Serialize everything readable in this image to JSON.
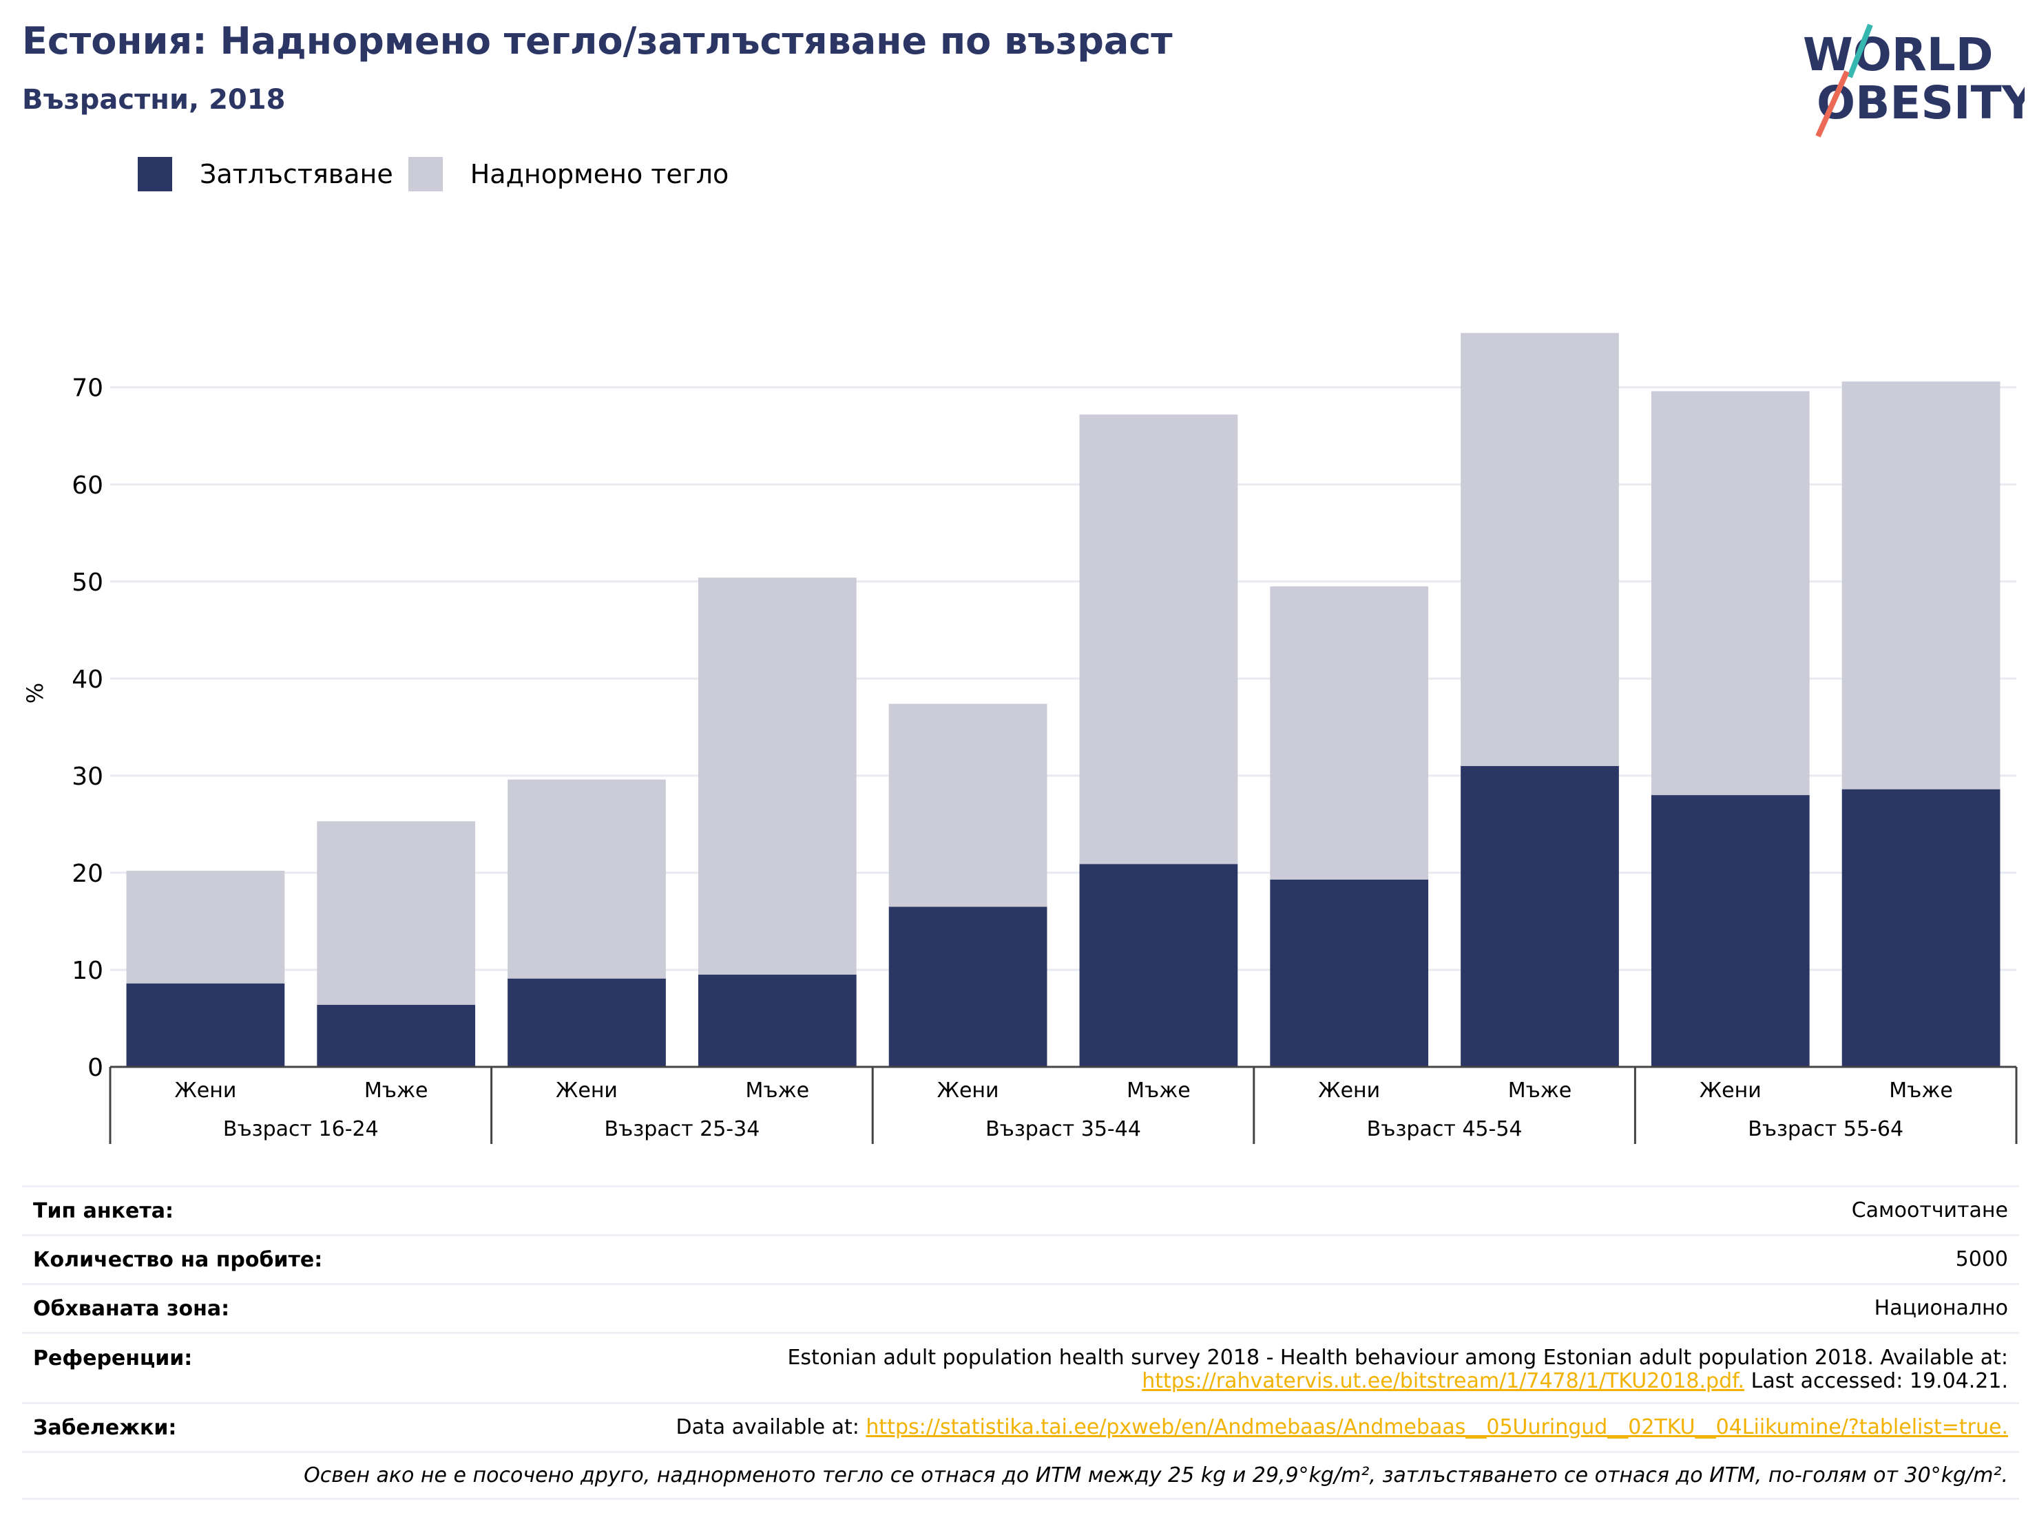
{
  "title": "Естония: Наднормено тегло/затлъстяване по възраст",
  "subtitle": "Възрастни, 2018",
  "logo": {
    "line1": "WORLD",
    "line2": "OBESITY"
  },
  "colors": {
    "obesity": "#2b3664",
    "overweight": "#cbccd7",
    "title": "#2b3664",
    "link": "#f2b200",
    "grid": "#e8eaf0"
  },
  "chart_data": {
    "type": "bar",
    "stacked": true,
    "ylabel": "%",
    "ylim": [
      0,
      77
    ],
    "yticks": [
      0,
      10,
      20,
      30,
      40,
      50,
      60,
      70
    ],
    "grid": true,
    "legend_position": "top-left",
    "categories": [
      "Жени",
      "Мъже",
      "Жени",
      "Мъже",
      "Жени",
      "Мъже",
      "Жени",
      "Мъже",
      "Жени",
      "Мъже"
    ],
    "groups": [
      "Възраст 16-24",
      "Възраст 25-34",
      "Възраст 35-44",
      "Възраст 45-54",
      "Възраст 55-64"
    ],
    "series": [
      {
        "name": "Затлъстяване",
        "values": [
          8.6,
          6.4,
          9.1,
          9.5,
          16.5,
          20.9,
          19.3,
          31.0,
          28.0,
          28.6
        ]
      },
      {
        "name": "Наднормено тегло",
        "values": [
          11.6,
          18.9,
          20.5,
          40.9,
          20.9,
          46.3,
          30.2,
          44.6,
          41.6,
          42.0
        ]
      }
    ]
  },
  "info": {
    "survey_type_label": "Тип анкета:",
    "survey_type": "Самоотчитане",
    "sample_size_label": "Количество на пробите:",
    "sample_size": "5000",
    "area_label": "Обхваната зона:",
    "area": "Национално",
    "references_label": "Референции:",
    "references_text": "Estonian adult population health survey 2018 - Health behaviour among Estonian adult population 2018. Available at:",
    "references_link": "https://rahvatervis.ut.ee/bitstream/1/7478/1/TKU2018.pdf.",
    "references_accessed": " Last accessed: 19.04.21.",
    "notes_label": "Забележки:",
    "notes_prefix": "Data available at: ",
    "notes_link": "https://statistika.tai.ee/pxweb/en/Andmebaas/Andmebaas__05Uuringud__02TKU__04Liikumine/?tablelist=true.",
    "footnote": "Освен ако не е посочено друго, наднорменото тегло се отнася до ИТМ между 25 kg и 29,9°kg/m², затлъстяването се отнася до ИТМ, по-голям от 30°kg/m²."
  }
}
